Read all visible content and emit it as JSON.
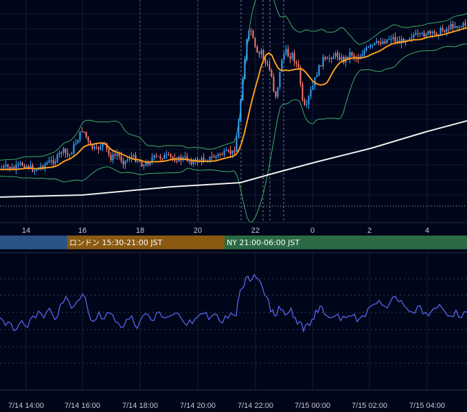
{
  "chart_data": [
    {
      "type": "candlestick",
      "title": "",
      "grid": true,
      "x_ticks_hours": [
        "14",
        "16",
        "18",
        "20",
        "22",
        "0",
        "2",
        "4"
      ],
      "overlays": [
        {
          "kind": "moving-average",
          "color": "#ff9f1c"
        },
        {
          "kind": "moving-average",
          "color": "#f2f2f2"
        },
        {
          "kind": "bollinger-bands",
          "color": "#3fae6a"
        }
      ],
      "price_path": [
        {
          "t": 0,
          "v": 0.81
        },
        {
          "t": 10,
          "v": 0.805
        },
        {
          "t": 20,
          "v": 0.815
        },
        {
          "t": 30,
          "v": 0.79
        },
        {
          "t": 40,
          "v": 0.8
        },
        {
          "t": 50,
          "v": 0.82
        },
        {
          "t": 60,
          "v": 0.8
        },
        {
          "t": 70,
          "v": 0.78
        },
        {
          "t": 80,
          "v": 0.77
        },
        {
          "t": 90,
          "v": 0.72
        },
        {
          "t": 100,
          "v": 0.75
        },
        {
          "t": 110,
          "v": 0.68
        },
        {
          "t": 120,
          "v": 0.61
        },
        {
          "t": 130,
          "v": 0.7
        },
        {
          "t": 140,
          "v": 0.72
        },
        {
          "t": 150,
          "v": 0.68
        },
        {
          "t": 160,
          "v": 0.76
        },
        {
          "t": 170,
          "v": 0.74
        },
        {
          "t": 180,
          "v": 0.78
        },
        {
          "t": 190,
          "v": 0.75
        },
        {
          "t": 200,
          "v": 0.77
        },
        {
          "t": 210,
          "v": 0.8
        },
        {
          "t": 220,
          "v": 0.76
        },
        {
          "t": 230,
          "v": 0.755
        },
        {
          "t": 240,
          "v": 0.75
        },
        {
          "t": 250,
          "v": 0.76
        },
        {
          "t": 260,
          "v": 0.765
        },
        {
          "t": 270,
          "v": 0.76
        },
        {
          "t": 280,
          "v": 0.78
        },
        {
          "t": 290,
          "v": 0.77
        },
        {
          "t": 300,
          "v": 0.765
        },
        {
          "t": 310,
          "v": 0.755
        },
        {
          "t": 320,
          "v": 0.74
        },
        {
          "t": 330,
          "v": 0.735
        },
        {
          "t": 340,
          "v": 0.73
        },
        {
          "t": 345,
          "v": 0.64
        },
        {
          "t": 348,
          "v": 0.55
        },
        {
          "t": 352,
          "v": 0.38
        },
        {
          "t": 356,
          "v": 0.26
        },
        {
          "t": 360,
          "v": 0.14
        },
        {
          "t": 365,
          "v": 0.12
        },
        {
          "t": 370,
          "v": 0.2
        },
        {
          "t": 375,
          "v": 0.25
        },
        {
          "t": 380,
          "v": 0.22
        },
        {
          "t": 385,
          "v": 0.28
        },
        {
          "t": 390,
          "v": 0.3
        },
        {
          "t": 395,
          "v": 0.35
        },
        {
          "t": 400,
          "v": 0.46
        },
        {
          "t": 405,
          "v": 0.38
        },
        {
          "t": 410,
          "v": 0.26
        },
        {
          "t": 415,
          "v": 0.22
        },
        {
          "t": 420,
          "v": 0.25
        },
        {
          "t": 425,
          "v": 0.24
        },
        {
          "t": 430,
          "v": 0.28
        },
        {
          "t": 435,
          "v": 0.32
        },
        {
          "t": 440,
          "v": 0.48
        },
        {
          "t": 445,
          "v": 0.52
        },
        {
          "t": 450,
          "v": 0.44
        },
        {
          "t": 455,
          "v": 0.4
        },
        {
          "t": 460,
          "v": 0.34
        },
        {
          "t": 465,
          "v": 0.3
        },
        {
          "t": 470,
          "v": 0.26
        },
        {
          "t": 475,
          "v": 0.28
        },
        {
          "t": 480,
          "v": 0.25
        },
        {
          "t": 490,
          "v": 0.24
        },
        {
          "t": 500,
          "v": 0.27
        },
        {
          "t": 510,
          "v": 0.23
        },
        {
          "t": 520,
          "v": 0.26
        },
        {
          "t": 530,
          "v": 0.22
        },
        {
          "t": 540,
          "v": 0.2
        },
        {
          "t": 550,
          "v": 0.18
        },
        {
          "t": 560,
          "v": 0.17
        },
        {
          "t": 570,
          "v": 0.15
        },
        {
          "t": 580,
          "v": 0.18
        },
        {
          "t": 590,
          "v": 0.16
        },
        {
          "t": 600,
          "v": 0.14
        },
        {
          "t": 610,
          "v": 0.15
        },
        {
          "t": 620,
          "v": 0.13
        },
        {
          "t": 630,
          "v": 0.14
        },
        {
          "t": 640,
          "v": 0.12
        },
        {
          "t": 650,
          "v": 0.11
        },
        {
          "t": 660,
          "v": 0.09
        },
        {
          "t": 670,
          "v": 0.1
        },
        {
          "t": 680,
          "v": 0.08
        }
      ]
    },
    {
      "type": "line",
      "title": "",
      "grid": true,
      "series": [
        {
          "color": "#5566ee",
          "values": [
            {
              "t": 0,
              "v": 0.52
            },
            {
              "t": 8,
              "v": 0.6
            },
            {
              "t": 16,
              "v": 0.58
            },
            {
              "t": 24,
              "v": 0.64
            },
            {
              "t": 32,
              "v": 0.55
            },
            {
              "t": 40,
              "v": 0.62
            },
            {
              "t": 48,
              "v": 0.5
            },
            {
              "t": 56,
              "v": 0.45
            },
            {
              "t": 64,
              "v": 0.52
            },
            {
              "t": 72,
              "v": 0.42
            },
            {
              "t": 80,
              "v": 0.54
            },
            {
              "t": 88,
              "v": 0.38
            },
            {
              "t": 96,
              "v": 0.3
            },
            {
              "t": 104,
              "v": 0.42
            },
            {
              "t": 112,
              "v": 0.35
            },
            {
              "t": 120,
              "v": 0.27
            },
            {
              "t": 128,
              "v": 0.44
            },
            {
              "t": 136,
              "v": 0.56
            },
            {
              "t": 144,
              "v": 0.46
            },
            {
              "t": 152,
              "v": 0.53
            },
            {
              "t": 160,
              "v": 0.47
            },
            {
              "t": 168,
              "v": 0.56
            },
            {
              "t": 176,
              "v": 0.62
            },
            {
              "t": 184,
              "v": 0.54
            },
            {
              "t": 192,
              "v": 0.5
            },
            {
              "t": 200,
              "v": 0.63
            },
            {
              "t": 208,
              "v": 0.5
            },
            {
              "t": 216,
              "v": 0.49
            },
            {
              "t": 224,
              "v": 0.55
            },
            {
              "t": 232,
              "v": 0.46
            },
            {
              "t": 240,
              "v": 0.52
            },
            {
              "t": 248,
              "v": 0.5
            },
            {
              "t": 256,
              "v": 0.47
            },
            {
              "t": 264,
              "v": 0.53
            },
            {
              "t": 272,
              "v": 0.6
            },
            {
              "t": 280,
              "v": 0.58
            },
            {
              "t": 288,
              "v": 0.51
            },
            {
              "t": 296,
              "v": 0.48
            },
            {
              "t": 304,
              "v": 0.54
            },
            {
              "t": 312,
              "v": 0.48
            },
            {
              "t": 320,
              "v": 0.56
            },
            {
              "t": 328,
              "v": 0.5
            },
            {
              "t": 336,
              "v": 0.47
            },
            {
              "t": 344,
              "v": 0.5
            },
            {
              "t": 348,
              "v": 0.3
            },
            {
              "t": 352,
              "v": 0.22
            },
            {
              "t": 358,
              "v": 0.1
            },
            {
              "t": 364,
              "v": 0.14
            },
            {
              "t": 370,
              "v": 0.07
            },
            {
              "t": 376,
              "v": 0.12
            },
            {
              "t": 382,
              "v": 0.2
            },
            {
              "t": 388,
              "v": 0.3
            },
            {
              "t": 394,
              "v": 0.46
            },
            {
              "t": 400,
              "v": 0.5
            },
            {
              "t": 406,
              "v": 0.4
            },
            {
              "t": 412,
              "v": 0.44
            },
            {
              "t": 418,
              "v": 0.48
            },
            {
              "t": 424,
              "v": 0.42
            },
            {
              "t": 430,
              "v": 0.52
            },
            {
              "t": 436,
              "v": 0.56
            },
            {
              "t": 442,
              "v": 0.66
            },
            {
              "t": 448,
              "v": 0.58
            },
            {
              "t": 454,
              "v": 0.54
            },
            {
              "t": 460,
              "v": 0.44
            },
            {
              "t": 466,
              "v": 0.4
            },
            {
              "t": 472,
              "v": 0.48
            },
            {
              "t": 480,
              "v": 0.52
            },
            {
              "t": 488,
              "v": 0.5
            },
            {
              "t": 496,
              "v": 0.55
            },
            {
              "t": 504,
              "v": 0.52
            },
            {
              "t": 512,
              "v": 0.5
            },
            {
              "t": 520,
              "v": 0.56
            },
            {
              "t": 528,
              "v": 0.5
            },
            {
              "t": 536,
              "v": 0.42
            },
            {
              "t": 544,
              "v": 0.38
            },
            {
              "t": 552,
              "v": 0.34
            },
            {
              "t": 560,
              "v": 0.4
            },
            {
              "t": 568,
              "v": 0.36
            },
            {
              "t": 576,
              "v": 0.3
            },
            {
              "t": 584,
              "v": 0.34
            },
            {
              "t": 592,
              "v": 0.42
            },
            {
              "t": 600,
              "v": 0.46
            },
            {
              "t": 608,
              "v": 0.4
            },
            {
              "t": 616,
              "v": 0.48
            },
            {
              "t": 624,
              "v": 0.5
            },
            {
              "t": 632,
              "v": 0.42
            },
            {
              "t": 640,
              "v": 0.38
            },
            {
              "t": 648,
              "v": 0.46
            },
            {
              "t": 656,
              "v": 0.5
            },
            {
              "t": 664,
              "v": 0.44
            },
            {
              "t": 672,
              "v": 0.52
            },
            {
              "t": 680,
              "v": 0.46
            }
          ]
        }
      ],
      "x_ticks": [
        "7/14 14:00",
        "7/14 16:00",
        "7/14 18:00",
        "7/14 20:00",
        "7/14 22:00",
        "7/15 00:00",
        "7/15 02:00",
        "7/15 04:00"
      ]
    }
  ],
  "sessions": [
    {
      "label": "",
      "color": "#2a5386"
    },
    {
      "label": "ロンドン 15:30-21:00 JST",
      "color": "#8a5a12"
    },
    {
      "label": "NY 21:00-06:00 JST",
      "color": "#2b6a45"
    }
  ]
}
